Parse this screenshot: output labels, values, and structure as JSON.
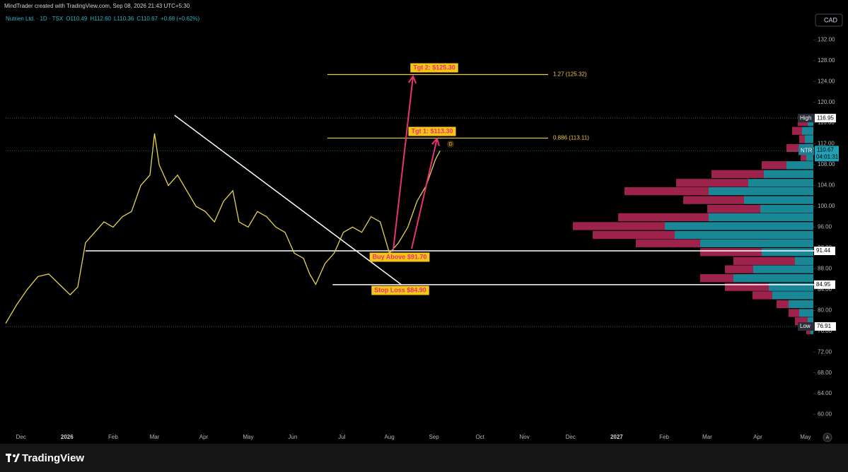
{
  "header": {
    "text": "MindTrader created with TradingView.com, Sep 08, 2026 21:43 UTC+5:30"
  },
  "footer": {
    "brand": "TradingView"
  },
  "chart_data": {
    "type": "line",
    "legend": {
      "symbol": "Nutrien Ltd. · 1D · TSX",
      "open": "O110.49",
      "high": "H112.60",
      "low": "L110.36",
      "close": "C110.67",
      "change": "+0.68 (+0.62%)"
    },
    "currency": "CAD",
    "auto_button": "A",
    "x": [
      0,
      7,
      14,
      21,
      28,
      35,
      42,
      47,
      52,
      58,
      64,
      70,
      76,
      82,
      88,
      94,
      97,
      100,
      106,
      112,
      118,
      124,
      130,
      136,
      142,
      148,
      152,
      158,
      164,
      170,
      176,
      182,
      188,
      194,
      198,
      202,
      208,
      214,
      220,
      226,
      232,
      238,
      244,
      250,
      256,
      262,
      268,
      274,
      280,
      283
    ],
    "series": [
      {
        "name": "NTR",
        "color": "#e8d44d",
        "values": [
          77.5,
          81,
          84,
          86.5,
          87,
          85,
          83,
          84.5,
          93,
          95,
          97,
          96,
          98,
          99,
          104,
          106,
          114,
          108,
          104,
          106,
          103,
          100,
          99,
          97,
          101,
          103,
          97,
          96,
          99,
          98,
          96,
          95,
          91,
          90,
          87,
          85,
          89,
          91,
          95,
          96,
          95,
          98,
          97,
          91,
          93,
          96,
          101,
          104,
          109,
          110.67
        ]
      }
    ],
    "xlim": [
      0,
      528
    ],
    "xticks": [
      {
        "value": 10,
        "label": "Dec"
      },
      {
        "value": 40,
        "label": "2026"
      },
      {
        "value": 70,
        "label": "Feb"
      },
      {
        "value": 97,
        "label": "Mar"
      },
      {
        "value": 129,
        "label": "Apr"
      },
      {
        "value": 158,
        "label": "May"
      },
      {
        "value": 187,
        "label": "Jun"
      },
      {
        "value": 219,
        "label": "Jul"
      },
      {
        "value": 250,
        "label": "Aug"
      },
      {
        "value": 279,
        "label": "Sep"
      },
      {
        "value": 309,
        "label": "Oct"
      },
      {
        "value": 338,
        "label": "Nov"
      },
      {
        "value": 368,
        "label": "Dec"
      },
      {
        "value": 398,
        "label": "2027"
      },
      {
        "value": 429,
        "label": "Feb"
      },
      {
        "value": 457,
        "label": "Mar"
      },
      {
        "value": 490,
        "label": "Apr"
      },
      {
        "value": 521,
        "label": "May"
      }
    ],
    "ylim": [
      57.5,
      137.2
    ],
    "yticks": [
      {
        "value": 60,
        "label": "60.00"
      },
      {
        "value": 64,
        "label": "64.00"
      },
      {
        "value": 68,
        "label": "68.00"
      },
      {
        "value": 72,
        "label": "72.00"
      },
      {
        "value": 76,
        "label": "76.00"
      },
      {
        "value": 80,
        "label": "80.00"
      },
      {
        "value": 84,
        "label": "84.00"
      },
      {
        "value": 88,
        "label": "88.00"
      },
      {
        "value": 92,
        "label": "92.00"
      },
      {
        "value": 96,
        "label": "96.00"
      },
      {
        "value": 100,
        "label": "100.00"
      },
      {
        "value": 104,
        "label": "104.00"
      },
      {
        "value": 108,
        "label": "108.00"
      },
      {
        "value": 112,
        "label": "112.00"
      },
      {
        "value": 116,
        "label": "116.00"
      },
      {
        "value": 120,
        "label": "120.00"
      },
      {
        "value": 124,
        "label": "124.00"
      },
      {
        "value": 128,
        "label": "128.00"
      },
      {
        "value": 132,
        "label": "132.00"
      }
    ],
    "high": {
      "label": "High",
      "value": 116.95
    },
    "low": {
      "label": "Low",
      "value": 76.91
    },
    "last": {
      "label": "NTR",
      "value": 110.67,
      "countdown": "04:01:31"
    },
    "fib_levels": [
      {
        "value": 125.32,
        "label": "1.27 (125.32)"
      },
      {
        "value": 113.11,
        "label": "0.886 (113.11)"
      }
    ],
    "levels": [
      91.44,
      84.95
    ],
    "annotations": {
      "tgt2": "Tgt 2: $125.30",
      "tgt1": "Tgt 1: $113.30",
      "buy": "Buy Above $91.70",
      "stop": "Stop Loss $84.90",
      "marker": "D"
    },
    "volume_profile": {
      "up_color": "#1f9fb0",
      "down_color": "#b8295a",
      "prices": [
        116.2,
        114.5,
        112.9,
        111.2,
        109.5,
        107.9,
        106.2,
        104.5,
        102.9,
        101.2,
        99.5,
        97.9,
        96.2,
        94.5,
        92.9,
        91.2,
        89.5,
        87.9,
        86.2,
        84.5,
        82.9,
        81.2,
        79.5,
        77.9,
        76.2
      ],
      "up": [
        8,
        16,
        12,
        20,
        10,
        38,
        70,
        92,
        148,
        98,
        75,
        148,
        210,
        196,
        160,
        73,
        26,
        85,
        113,
        63,
        58,
        35,
        20,
        8,
        4
      ],
      "down": [
        14,
        14,
        8,
        18,
        8,
        35,
        74,
        102,
        119,
        86,
        75,
        128,
        130,
        116,
        91,
        87,
        87,
        40,
        47,
        62,
        28,
        17,
        15,
        18,
        6
      ]
    }
  }
}
